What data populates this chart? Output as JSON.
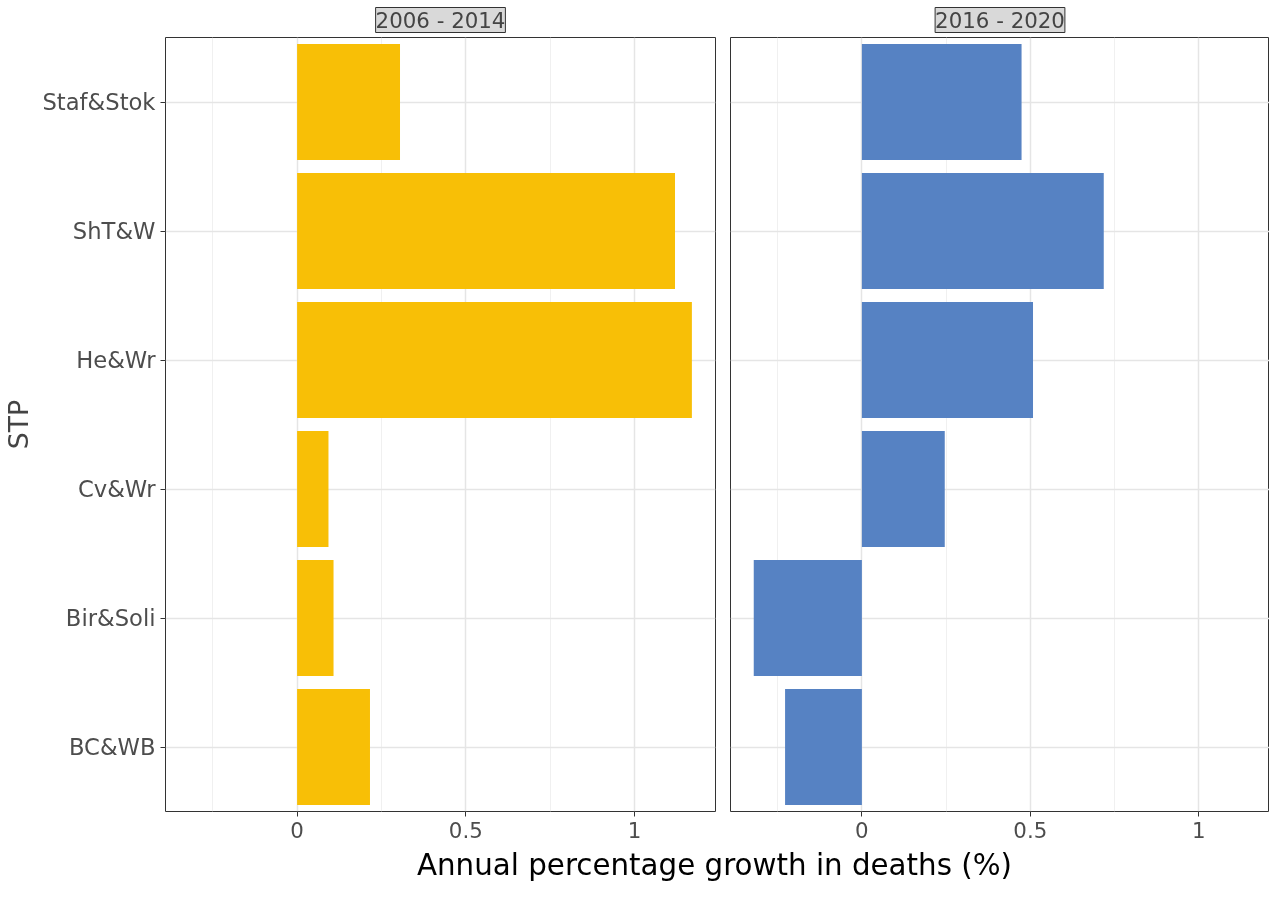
{
  "chart_data": [
    {
      "type": "bar",
      "orientation": "horizontal",
      "title": "2006 - 2014",
      "ylabel": "STP",
      "xlabel": "Annual percentage growth in deaths (%)",
      "categories": [
        "Staf&Stok",
        "ShT&W",
        "He&Wr",
        "Cv&Wr",
        "Bir&Soli",
        "BC&WB"
      ],
      "values": [
        0.305,
        1.12,
        1.17,
        0.093,
        0.108,
        0.216
      ],
      "color": "#f8bf06",
      "xlim": [
        -0.39,
        1.24
      ],
      "xticks": [
        0,
        0.5,
        1
      ],
      "grid": true
    },
    {
      "type": "bar",
      "orientation": "horizontal",
      "title": "2016 - 2020",
      "values": [
        0.474,
        0.718,
        0.508,
        0.246,
        -0.321,
        -0.228
      ],
      "color": "#5682c3",
      "xlim": [
        -0.39,
        1.21
      ],
      "xticks": [
        0,
        0.5,
        1
      ],
      "grid": true,
      "tick_labels": "x"
    }
  ]
}
